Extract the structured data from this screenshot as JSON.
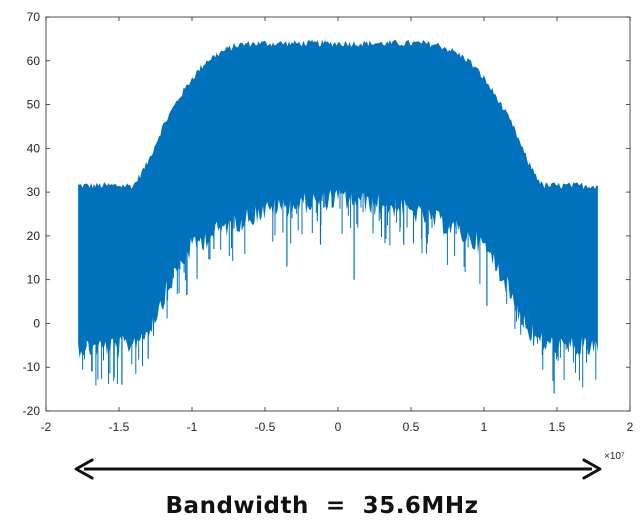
{
  "chart_data": {
    "type": "area",
    "title": "",
    "xlabel": "",
    "ylabel": "",
    "x_exponent_label": "×10⁷",
    "xlim": [
      -2,
      2
    ],
    "ylim": [
      -20,
      70
    ],
    "xticks": [
      -2,
      -1.5,
      -1,
      -0.5,
      0,
      0.5,
      1,
      1.5,
      2
    ],
    "xtick_labels": [
      "-2",
      "-1.5",
      "-1",
      "-0.5",
      "0",
      "0.5",
      "1",
      "1.5",
      "2"
    ],
    "yticks": [
      -20,
      -10,
      0,
      10,
      20,
      30,
      40,
      50,
      60,
      70
    ],
    "ytick_labels": [
      "-20",
      "-10",
      "0",
      "10",
      "20",
      "30",
      "40",
      "50",
      "60",
      "70"
    ],
    "grid": false,
    "series_color": "#0072BD",
    "series": [
      {
        "upper_envelope": {
          "x": [
            -1.78,
            -1.4,
            -1.3,
            -1.2,
            -1.1,
            -1.0,
            -0.9,
            -0.8,
            -0.7,
            -0.6,
            0,
            0.6,
            0.7,
            0.8,
            0.9,
            1.0,
            1.1,
            1.2,
            1.3,
            1.4,
            1.78
          ],
          "y": [
            31.5,
            31.5,
            37,
            45,
            51,
            56,
            60,
            62,
            63.5,
            64,
            64,
            64,
            63.5,
            62,
            60,
            56,
            51,
            45,
            37,
            31.5,
            31.5
          ]
        },
        "lower_envelope": {
          "x": [
            -1.78,
            -1.5,
            -1.4,
            -1.3,
            -1.2,
            -1.1,
            -1.0,
            -0.8,
            -0.6,
            -0.4,
            -0.2,
            0,
            0.2,
            0.4,
            0.6,
            0.8,
            1.0,
            1.1,
            1.2,
            1.3,
            1.4,
            1.5,
            1.78
          ],
          "y": [
            -3,
            -3,
            -2,
            1,
            8,
            15,
            20,
            24,
            27,
            29,
            30,
            31,
            30,
            29,
            27,
            24,
            20,
            15,
            8,
            1,
            -2,
            -3,
            -3
          ]
        },
        "deep_dips": [
          {
            "x": -1.48,
            "y": -14
          },
          {
            "x": -1.3,
            "y": -8
          },
          {
            "x": -1.15,
            "y": 8
          },
          {
            "x": -0.85,
            "y": 17
          },
          {
            "x": -0.35,
            "y": 13
          },
          {
            "x": -0.12,
            "y": 18
          },
          {
            "x": 0.11,
            "y": 10
          },
          {
            "x": 0.45,
            "y": 18
          },
          {
            "x": 1.02,
            "y": 4
          },
          {
            "x": 1.34,
            "y": -5
          },
          {
            "x": 1.48,
            "y": -16
          }
        ]
      }
    ],
    "bandwidth_arrow": {
      "from": -1.78,
      "to": 1.78
    },
    "annotation": "Bandwidth  =  35.6MHz"
  }
}
